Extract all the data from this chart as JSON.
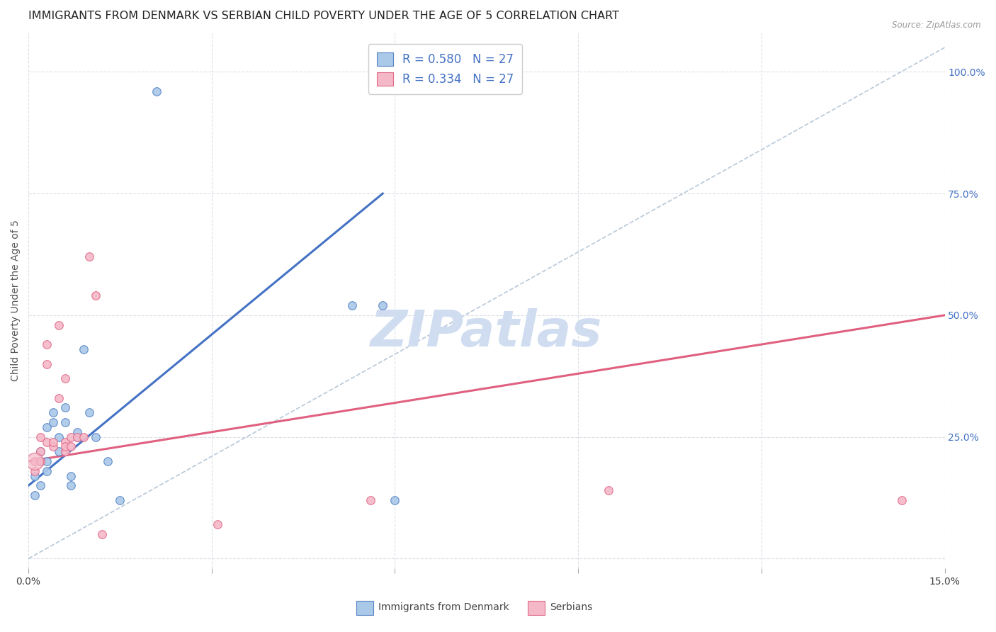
{
  "title": "IMMIGRANTS FROM DENMARK VS SERBIAN CHILD POVERTY UNDER THE AGE OF 5 CORRELATION CHART",
  "source": "Source: ZipAtlas.com",
  "ylabel": "Child Poverty Under the Age of 5",
  "xlim": [
    0.0,
    0.15
  ],
  "ylim": [
    -0.02,
    1.08
  ],
  "xticks": [
    0.0,
    0.03,
    0.06,
    0.09,
    0.12,
    0.15
  ],
  "xticklabels": [
    "0.0%",
    "",
    "",
    "",
    "",
    "15.0%"
  ],
  "yticks_right": [
    0.0,
    0.25,
    0.5,
    0.75,
    1.0
  ],
  "ytick_right_labels": [
    "",
    "25.0%",
    "50.0%",
    "75.0%",
    "100.0%"
  ],
  "denmark_scatter": [
    [
      0.001,
      0.17
    ],
    [
      0.001,
      0.13
    ],
    [
      0.002,
      0.15
    ],
    [
      0.002,
      0.2
    ],
    [
      0.002,
      0.22
    ],
    [
      0.003,
      0.2
    ],
    [
      0.003,
      0.18
    ],
    [
      0.003,
      0.27
    ],
    [
      0.004,
      0.28
    ],
    [
      0.004,
      0.3
    ],
    [
      0.005,
      0.22
    ],
    [
      0.005,
      0.25
    ],
    [
      0.006,
      0.28
    ],
    [
      0.006,
      0.31
    ],
    [
      0.007,
      0.15
    ],
    [
      0.007,
      0.17
    ],
    [
      0.008,
      0.25
    ],
    [
      0.008,
      0.26
    ],
    [
      0.009,
      0.43
    ],
    [
      0.01,
      0.3
    ],
    [
      0.011,
      0.25
    ],
    [
      0.013,
      0.2
    ],
    [
      0.015,
      0.12
    ],
    [
      0.021,
      0.96
    ],
    [
      0.053,
      0.52
    ],
    [
      0.058,
      0.52
    ],
    [
      0.06,
      0.12
    ]
  ],
  "serbian_scatter": [
    [
      0.001,
      0.2
    ],
    [
      0.001,
      0.18
    ],
    [
      0.002,
      0.22
    ],
    [
      0.002,
      0.2
    ],
    [
      0.002,
      0.25
    ],
    [
      0.003,
      0.4
    ],
    [
      0.003,
      0.44
    ],
    [
      0.003,
      0.24
    ],
    [
      0.004,
      0.23
    ],
    [
      0.004,
      0.24
    ],
    [
      0.005,
      0.33
    ],
    [
      0.005,
      0.48
    ],
    [
      0.006,
      0.24
    ],
    [
      0.006,
      0.22
    ],
    [
      0.006,
      0.23
    ],
    [
      0.006,
      0.37
    ],
    [
      0.007,
      0.25
    ],
    [
      0.007,
      0.23
    ],
    [
      0.008,
      0.25
    ],
    [
      0.009,
      0.25
    ],
    [
      0.01,
      0.62
    ],
    [
      0.011,
      0.54
    ],
    [
      0.012,
      0.05
    ],
    [
      0.031,
      0.07
    ],
    [
      0.056,
      0.12
    ],
    [
      0.095,
      0.14
    ],
    [
      0.143,
      0.12
    ]
  ],
  "denmark_line_x": [
    0.0,
    0.058
  ],
  "denmark_line_y": [
    0.15,
    0.75
  ],
  "danish_R": 0.58,
  "danish_N": 27,
  "serbian_line_x": [
    0.0,
    0.15
  ],
  "serbian_line_y": [
    0.2,
    0.5
  ],
  "serbian_R": 0.334,
  "serbian_N": 27,
  "diag_line_x": [
    0.0,
    0.15
  ],
  "diag_line_y": [
    0.0,
    1.05
  ],
  "denmark_fill_color": "#aac8e8",
  "denmark_edge_color": "#5585c5",
  "serbian_fill_color": "#f5b8c8",
  "serbian_edge_color": "#e06888",
  "denmark_line_color": "#4472c4",
  "serbian_line_color": "#e06080",
  "diag_line_color": "#b8c8d8",
  "scatter_size": 70,
  "big_dot_size": 300,
  "title_fontsize": 11.5,
  "axis_label_fontsize": 10,
  "tick_fontsize": 10,
  "legend_fontsize": 12,
  "right_tick_color": "#4472c4",
  "background_color": "#ffffff",
  "grid_color": "#dde0e8",
  "watermark": "ZIPatlas",
  "watermark_color": "#d0ddf0"
}
